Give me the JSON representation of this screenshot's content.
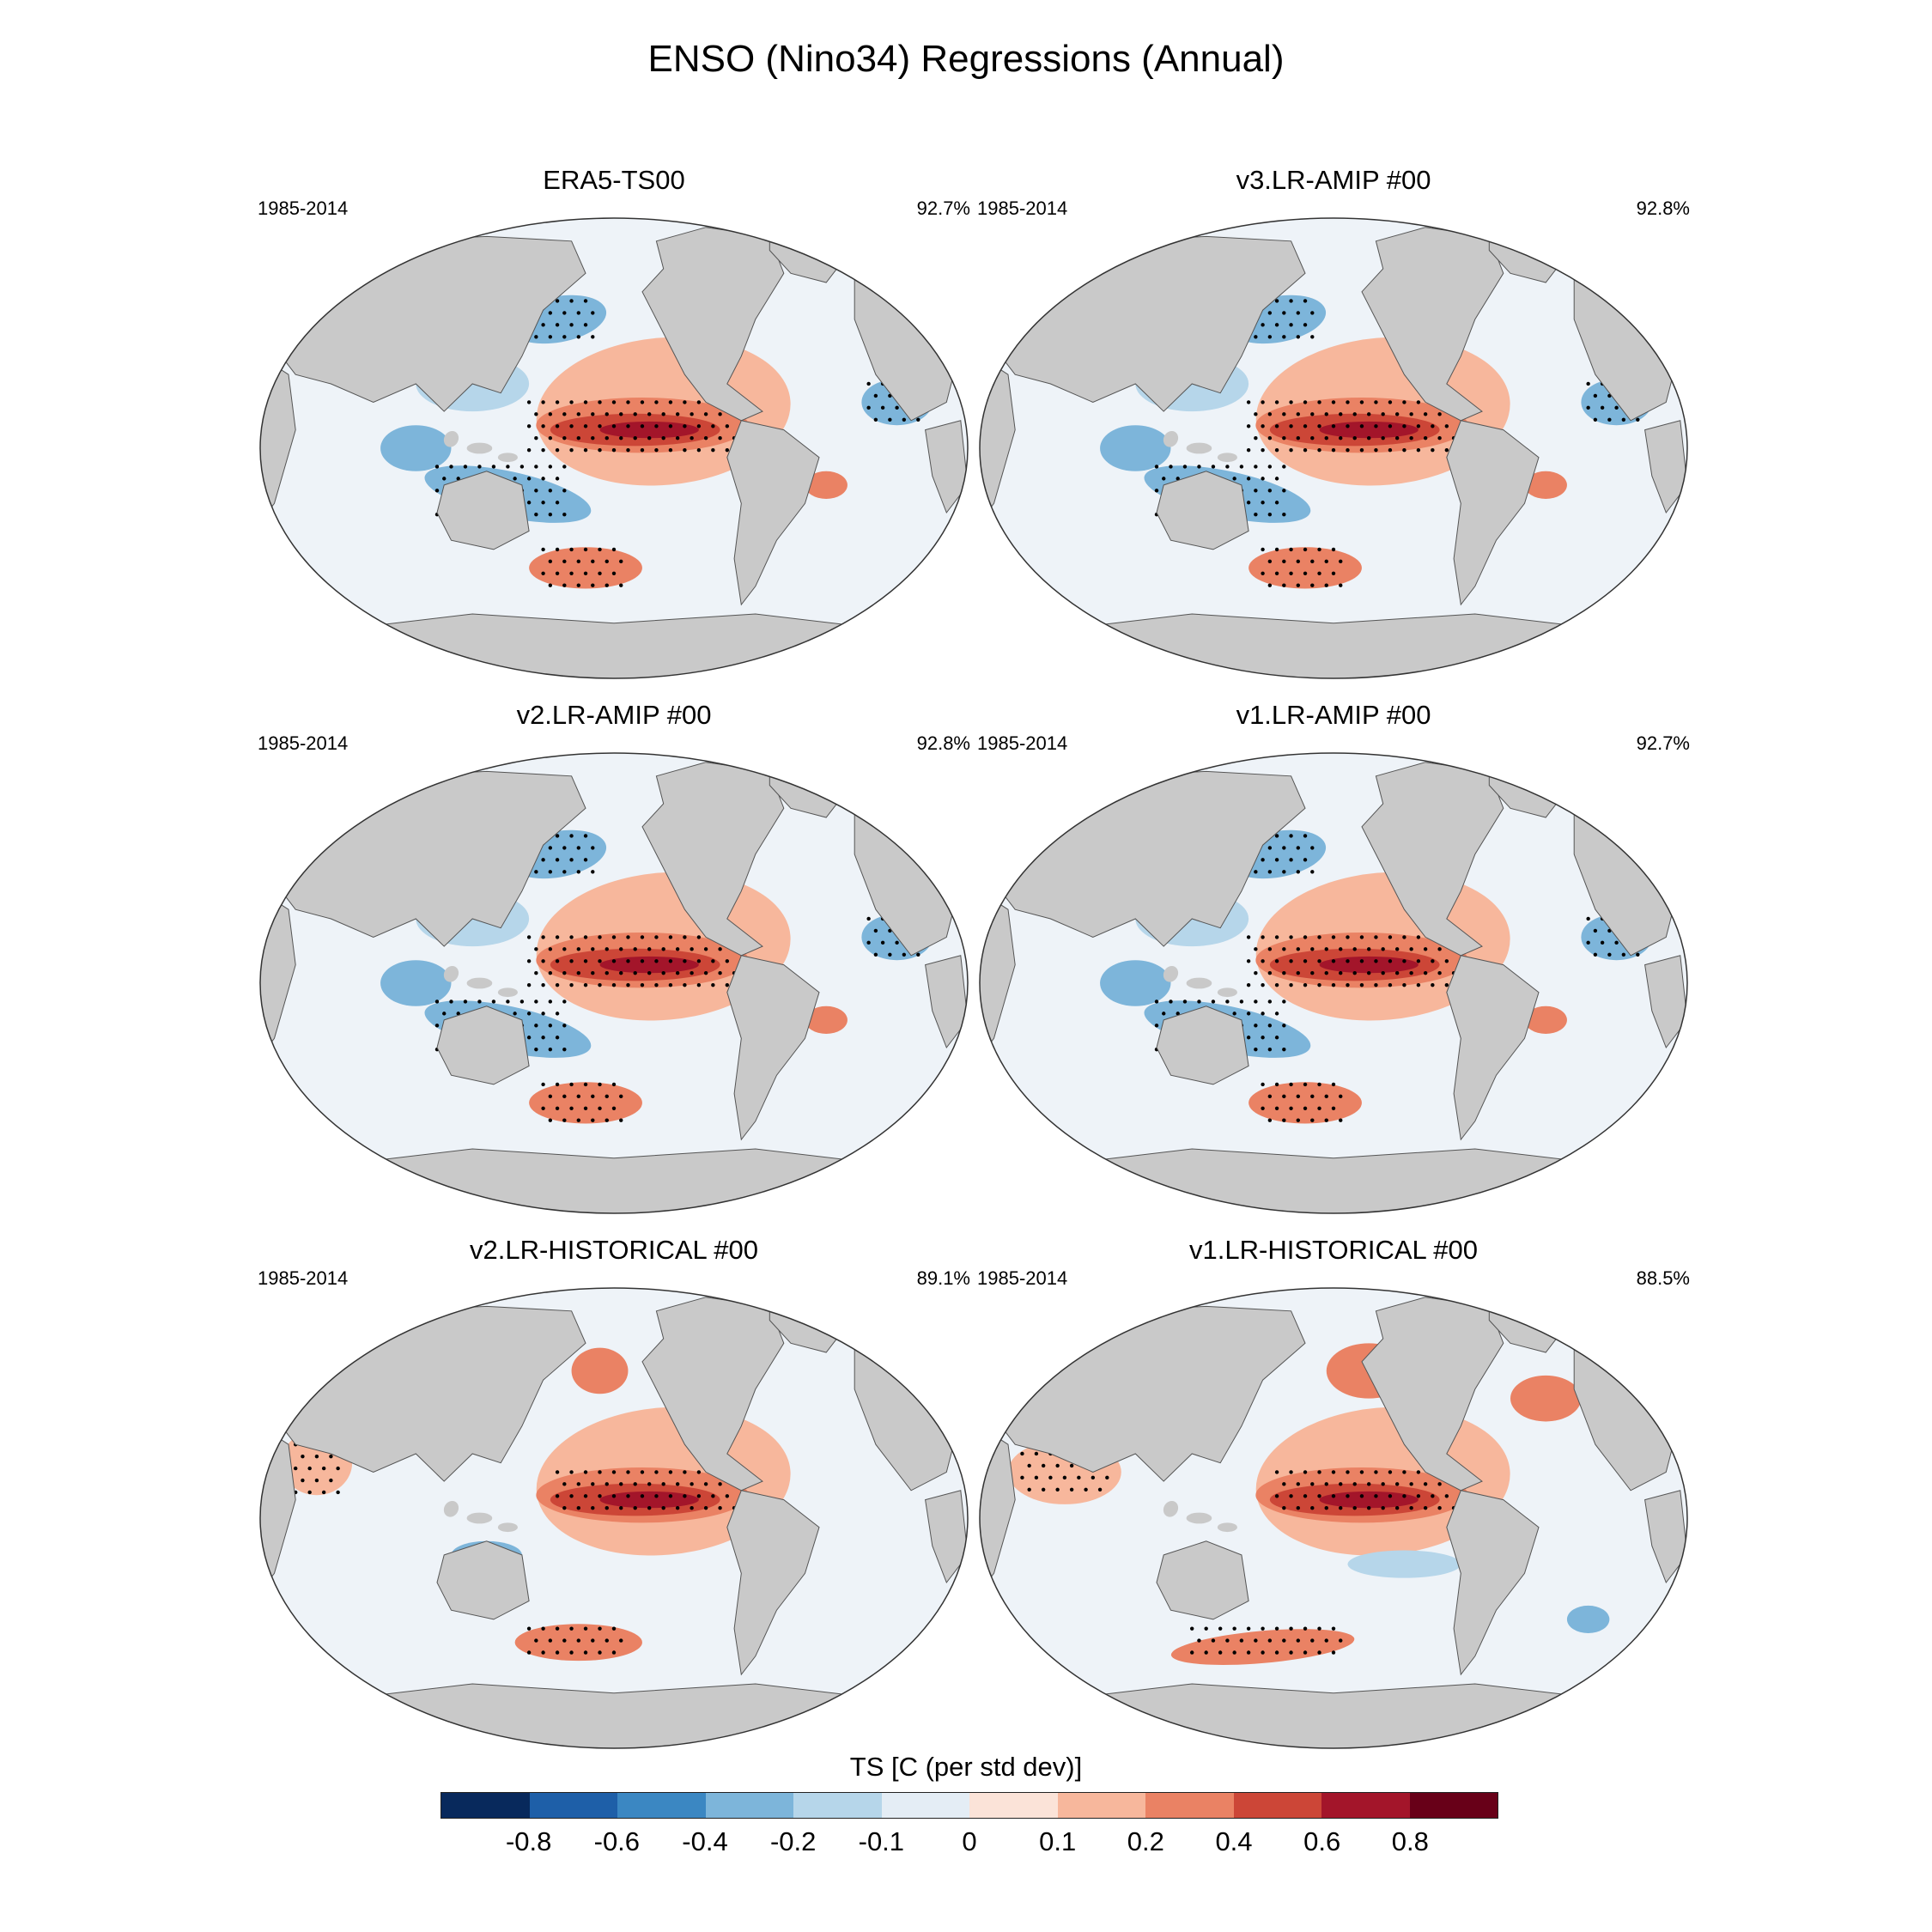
{
  "figure": {
    "title": "ENSO (Nino34) Regressions (Annual)"
  },
  "panels": [
    {
      "title": "ERA5-TS00",
      "period": "1985-2014",
      "percent": "92.7%",
      "variant": "obs"
    },
    {
      "title": "v3.LR-AMIP  #00",
      "period": "1985-2014",
      "percent": "92.8%",
      "variant": "amip"
    },
    {
      "title": "v2.LR-AMIP  #00",
      "period": "1985-2014",
      "percent": "92.8%",
      "variant": "amip"
    },
    {
      "title": "v1.LR-AMIP  #00",
      "period": "1985-2014",
      "percent": "92.7%",
      "variant": "amip"
    },
    {
      "title": "v2.LR-HISTORICAL  #00",
      "period": "1985-2014",
      "percent": "89.1%",
      "variant": "hist2"
    },
    {
      "title": "v1.LR-HISTORICAL  #00",
      "period": "1985-2014",
      "percent": "88.5%",
      "variant": "hist1"
    }
  ],
  "colorbar": {
    "title": "TS [C (per std dev)]",
    "ticks": [
      "-0.8",
      "-0.6",
      "-0.4",
      "-0.2",
      "-0.1",
      "0",
      "0.1",
      "0.2",
      "0.4",
      "0.6",
      "0.8"
    ],
    "colors": [
      "#08295c",
      "#1e5fa8",
      "#3b87c2",
      "#7db5da",
      "#b6d6ea",
      "#e4edf5",
      "#fbe3d8",
      "#f7b79c",
      "#ea8264",
      "#cc4637",
      "#a3152a",
      "#680018"
    ]
  },
  "colors": {
    "land": "#c9c9c9",
    "ocean_neutral": "#eef3f8"
  }
}
